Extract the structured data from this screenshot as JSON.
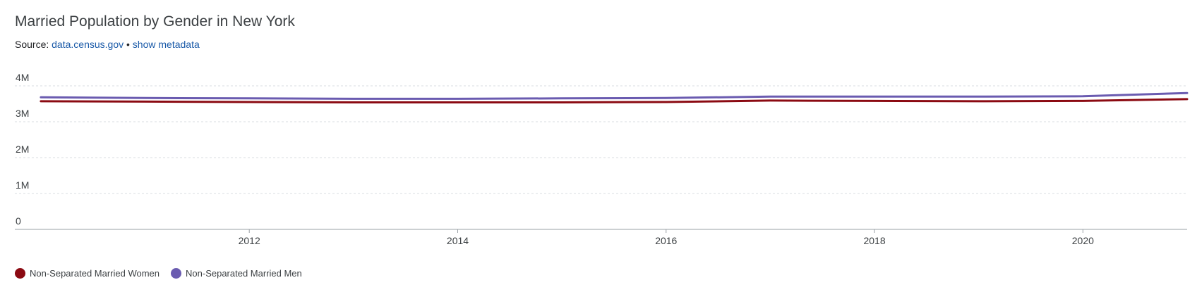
{
  "title": "Married Population by Gender in New York",
  "source": {
    "prefix": "Source:",
    "link_label": "data.census.gov",
    "separator": "•",
    "metadata_label": "show metadata"
  },
  "colors": {
    "women": "#8b0a12",
    "men": "#6a5bb0",
    "grid": "#dadce0",
    "axis": "#9aa0a6"
  },
  "chart_data": {
    "type": "line",
    "title": "Married Population by Gender in New York",
    "xlabel": "",
    "ylabel": "",
    "x": [
      2010,
      2011,
      2012,
      2013,
      2014,
      2015,
      2016,
      2017,
      2018,
      2019,
      2020,
      2021
    ],
    "x_ticks": [
      "2012",
      "2014",
      "2016",
      "2018",
      "2020"
    ],
    "y_ticks": [
      "0",
      "1M",
      "2M",
      "3M",
      "4M"
    ],
    "ylim": [
      0,
      4000000
    ],
    "xlim": [
      2009.75,
      2021
    ],
    "grid": true,
    "legend_position": "bottom-left",
    "series": [
      {
        "name": "Non-Separated Married Women",
        "color": "#8b0a12",
        "values": [
          3570000,
          3560000,
          3550000,
          3540000,
          3540000,
          3540000,
          3550000,
          3590000,
          3580000,
          3570000,
          3580000,
          3630000
        ]
      },
      {
        "name": "Non-Separated Married Men",
        "color": "#6a5bb0",
        "values": [
          3680000,
          3660000,
          3650000,
          3640000,
          3640000,
          3650000,
          3660000,
          3700000,
          3700000,
          3700000,
          3710000,
          3800000
        ]
      }
    ]
  }
}
